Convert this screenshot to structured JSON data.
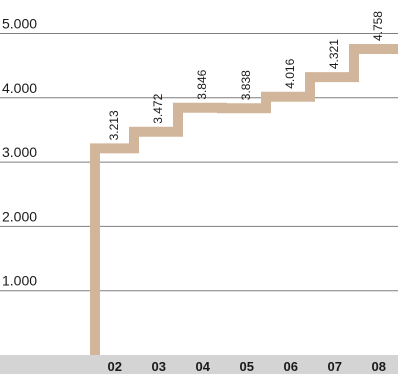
{
  "chart_data": {
    "type": "line",
    "step": true,
    "categories": [
      "02",
      "03",
      "04",
      "05",
      "06",
      "07",
      "08"
    ],
    "values": [
      3213,
      3472,
      3846,
      3838,
      4016,
      4321,
      4758
    ],
    "data_labels": [
      "3.213",
      "3.472",
      "3.846",
      "3.838",
      "4.016",
      "4.321",
      "4.758"
    ],
    "y_ticks": [
      {
        "value": 1000,
        "label": "1.000"
      },
      {
        "value": 2000,
        "label": "2.000"
      },
      {
        "value": 3000,
        "label": "3.000"
      },
      {
        "value": 4000,
        "label": "4.000"
      },
      {
        "value": 5000,
        "label": "5.000"
      }
    ],
    "ylim": [
      0,
      5000
    ],
    "grid": true,
    "title": "",
    "xlabel": "",
    "ylabel": "",
    "colors": {
      "line": "#d2b69b",
      "axis_band": "#d4d4d4",
      "grid": "#7f7f7f",
      "text": "#1a1a1a"
    }
  }
}
